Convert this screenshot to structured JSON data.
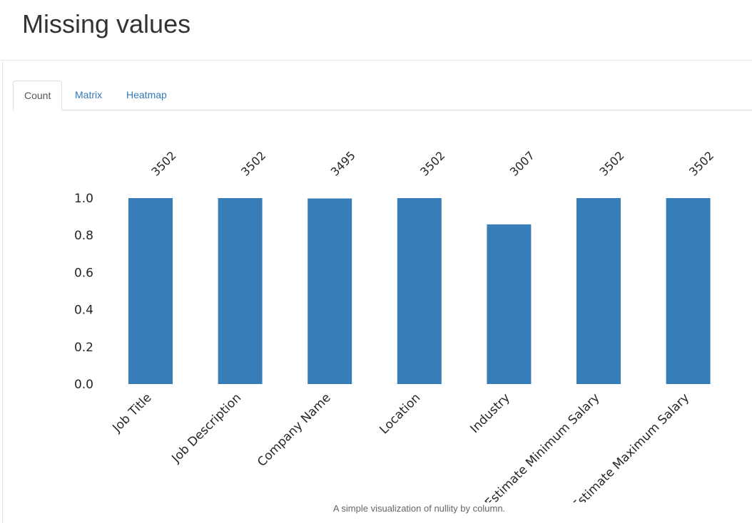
{
  "page": {
    "title": "Missing values"
  },
  "tabs": [
    {
      "label": "Count",
      "active": true
    },
    {
      "label": "Matrix",
      "active": false
    },
    {
      "label": "Heatmap",
      "active": false
    }
  ],
  "chart_data": {
    "type": "bar",
    "categories": [
      "Job Title",
      "Job Description",
      "Company Name",
      "Location",
      "Industry",
      "Estimate Minimum Salary",
      "Estimate Maximum Salary"
    ],
    "values": [
      1.0,
      1.0,
      0.998,
      1.0,
      0.8586,
      1.0,
      1.0
    ],
    "counts": [
      "3502",
      "3502",
      "3495",
      "3502",
      "3007",
      "3502",
      "3502"
    ],
    "ylim": [
      0,
      1
    ],
    "yticks": [
      "0.0",
      "0.2",
      "0.4",
      "0.6",
      "0.8",
      "1.0"
    ],
    "title": "",
    "xlabel": "",
    "ylabel": "",
    "bar_color": "#377eb8"
  },
  "caption": "A simple visualization of nullity by column.",
  "colors": {
    "link": "#337ab7",
    "bar": "#377eb8",
    "text": "#333333"
  }
}
